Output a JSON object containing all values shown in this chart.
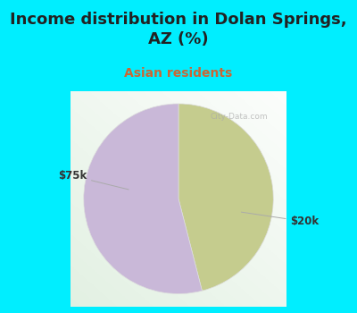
{
  "title": "Income distribution in Dolan Springs,\nAZ (%)",
  "subtitle": "Asian residents",
  "title_color": "#222222",
  "subtitle_color": "#cc6633",
  "background_color": "#00eeff",
  "chart_bg_from": "#e8f5ee",
  "chart_bg_to": "#ffffff",
  "slices": [
    {
      "label": "$75k",
      "value": 46,
      "color": "#c5cc8e"
    },
    {
      "label": "$20k",
      "value": 54,
      "color": "#c9b8d8"
    }
  ],
  "label_color": "#333333",
  "label_fontsize": 8.5,
  "title_fontsize": 13,
  "subtitle_fontsize": 10,
  "watermark": "City-Data.com",
  "watermark_color": "#aaaaaa",
  "line_color": "#aaaaaa"
}
